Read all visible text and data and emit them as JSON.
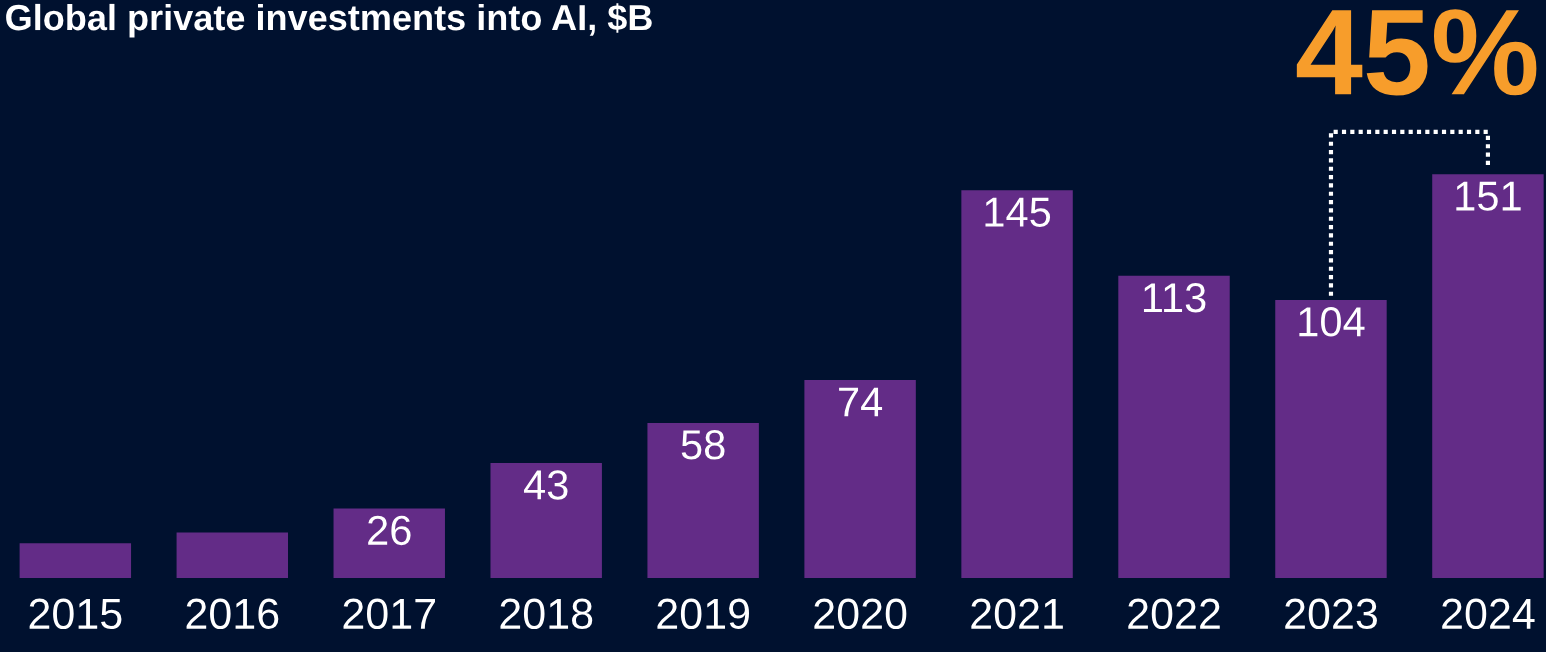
{
  "chart_data": {
    "type": "bar",
    "title": "Global private investments into AI, $B",
    "categories": [
      "2015",
      "2016",
      "2017",
      "2018",
      "2019",
      "2020",
      "2021",
      "2022",
      "2023",
      "2024"
    ],
    "values": [
      13,
      17,
      26,
      43,
      58,
      74,
      145,
      113,
      104,
      151
    ],
    "value_labels": [
      null,
      null,
      "26",
      "43",
      "58",
      "74",
      "145",
      "113",
      "104",
      "151"
    ],
    "color": "#632c87",
    "annotations": [
      "45%"
    ],
    "grid": false,
    "legend": false
  }
}
